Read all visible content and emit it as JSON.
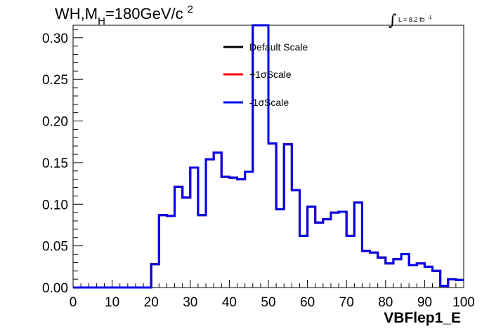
{
  "chart_data": {
    "type": "line",
    "title": {
      "prefix": "WH,M",
      "subscript": "H",
      "value": "=180GeV/c",
      "superscript": "2"
    },
    "lumi": {
      "integral_symbol": "∫",
      "text": "L = 8.2 fb",
      "superscript": "-1"
    },
    "xlabel": "VBFlep1_E",
    "ylabel": "",
    "xlim": [
      0,
      100
    ],
    "ylim": [
      0,
      0.315
    ],
    "x_ticks": [
      "0",
      "10",
      "20",
      "30",
      "40",
      "50",
      "60",
      "70",
      "80",
      "90",
      "100"
    ],
    "y_ticks": [
      "0.00",
      "0.05",
      "0.10",
      "0.15",
      "0.20",
      "0.25",
      "0.30"
    ],
    "bin_width": 2,
    "x": [
      0,
      2,
      4,
      6,
      8,
      10,
      12,
      14,
      16,
      18,
      20,
      22,
      24,
      26,
      28,
      30,
      32,
      34,
      36,
      38,
      40,
      42,
      44,
      46,
      48,
      50,
      52,
      54,
      56,
      58,
      60,
      62,
      64,
      66,
      68,
      70,
      72,
      74,
      76,
      78,
      80,
      82,
      84,
      86,
      88,
      90,
      92,
      94,
      96,
      98
    ],
    "series": [
      {
        "name": "Default Scale",
        "color": "#000000",
        "values": [
          0,
          0,
          0,
          0,
          0,
          0,
          0,
          0,
          0,
          0,
          0.028,
          0.087,
          0.086,
          0.121,
          0.108,
          0.144,
          0.087,
          0.154,
          0.162,
          0.133,
          0.132,
          0.13,
          0.139,
          0.315,
          0.315,
          0.173,
          0.094,
          0.172,
          0.117,
          0.062,
          0.097,
          0.078,
          0.082,
          0.09,
          0.091,
          0.062,
          0.102,
          0.044,
          0.042,
          0.036,
          0.029,
          0.034,
          0.04,
          0.027,
          0.029,
          0.025,
          0.02,
          0.002,
          0.01,
          0.009
        ]
      },
      {
        "name": "+1σScale",
        "color": "#ff0000",
        "values": [
          0,
          0,
          0,
          0,
          0,
          0,
          0,
          0,
          0,
          0,
          0.028,
          0.087,
          0.086,
          0.121,
          0.108,
          0.144,
          0.087,
          0.154,
          0.162,
          0.133,
          0.132,
          0.13,
          0.139,
          0.315,
          0.315,
          0.173,
          0.094,
          0.172,
          0.117,
          0.062,
          0.097,
          0.078,
          0.082,
          0.09,
          0.091,
          0.062,
          0.102,
          0.044,
          0.042,
          0.036,
          0.029,
          0.034,
          0.04,
          0.027,
          0.029,
          0.025,
          0.02,
          0.002,
          0.01,
          0.009
        ]
      },
      {
        "name": "-1σScale",
        "color": "#0000ee",
        "values": [
          0,
          0,
          0,
          0,
          0,
          0,
          0,
          0,
          0,
          0,
          0.028,
          0.087,
          0.086,
          0.121,
          0.108,
          0.144,
          0.087,
          0.154,
          0.162,
          0.133,
          0.132,
          0.13,
          0.139,
          0.315,
          0.315,
          0.173,
          0.094,
          0.172,
          0.117,
          0.062,
          0.097,
          0.078,
          0.082,
          0.09,
          0.091,
          0.062,
          0.102,
          0.044,
          0.042,
          0.036,
          0.029,
          0.034,
          0.04,
          0.027,
          0.029,
          0.025,
          0.02,
          0.002,
          0.01,
          0.009
        ]
      }
    ],
    "legend_position": "top-center",
    "grid": false
  }
}
